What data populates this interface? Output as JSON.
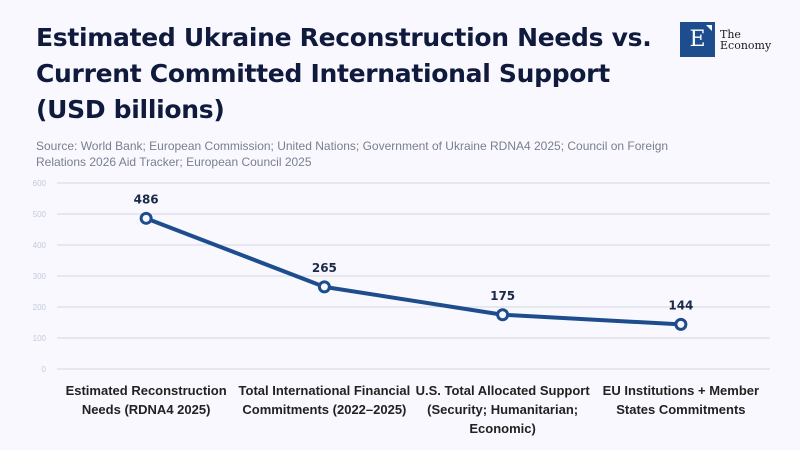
{
  "header": {
    "title": "Estimated Ukraine Reconstruction Needs vs. Current Committed International Support (USD billions)",
    "source": "Source: World Bank; European Commission; United Nations; Government of Ukraine RDNA4 2025; Council on Foreign Relations 2026 Aid Tracker; European Council 2025"
  },
  "logo": {
    "letter": "E",
    "line1": "The",
    "line2": "Economy",
    "color": "#1d4d8c"
  },
  "chart_data": {
    "type": "line",
    "title": "Estimated Ukraine Reconstruction Needs vs. Current Committed International Support (USD billions)",
    "xlabel": "",
    "ylabel": "",
    "categories": [
      "Estimated Reconstruction Needs (RDNA4 2025)",
      "Total International Financial Commitments (2022–2025)",
      "U.S. Total Allocated Support (Security; Humanitarian; Economic)",
      "EU Institutions + Member States Commitments"
    ],
    "series": [
      {
        "name": "USD billions",
        "values": [
          486,
          265,
          175,
          144
        ],
        "color": "#1d4d8c"
      }
    ],
    "ylim": [
      0,
      600
    ],
    "yticks": [
      0,
      100,
      200,
      300,
      400,
      500,
      600
    ],
    "grid": true,
    "legend": "none"
  }
}
